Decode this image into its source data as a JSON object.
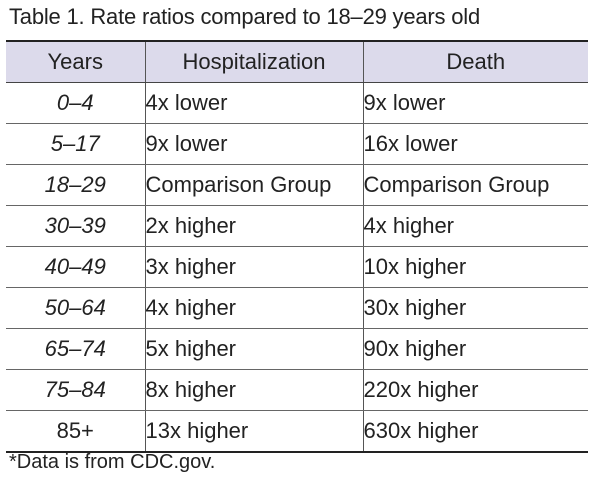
{
  "caption": "Table 1. Rate ratios compared to 18–29 years old",
  "table": {
    "headers": [
      "Years",
      "Hospitalization",
      "Death"
    ],
    "rows": [
      {
        "years": "0–4",
        "hospitalization": "4x lower",
        "death": "9x lower",
        "italic": true
      },
      {
        "years": "5–17",
        "hospitalization": "9x lower",
        "death": "16x lower",
        "italic": true
      },
      {
        "years": "18–29",
        "hospitalization": "Comparison Group",
        "death": "Comparison Group",
        "italic": true
      },
      {
        "years": "30–39",
        "hospitalization": "2x higher",
        "death": "4x higher",
        "italic": true
      },
      {
        "years": "40–49",
        "hospitalization": "3x higher",
        "death": "10x higher",
        "italic": true
      },
      {
        "years": "50–64",
        "hospitalization": "4x higher",
        "death": "30x higher",
        "italic": true
      },
      {
        "years": "65–74",
        "hospitalization": "5x higher",
        "death": "90x higher",
        "italic": true
      },
      {
        "years": "75–84",
        "hospitalization": "8x higher",
        "death": "220x higher",
        "italic": true
      },
      {
        "years": "85+",
        "hospitalization": "13x higher",
        "death": "630x higher",
        "italic": false
      }
    ]
  },
  "footnote": "*Data is from CDC.gov.",
  "colors": {
    "header_background": "#dcdaeb",
    "text": "#222222",
    "rules": "#222222"
  }
}
